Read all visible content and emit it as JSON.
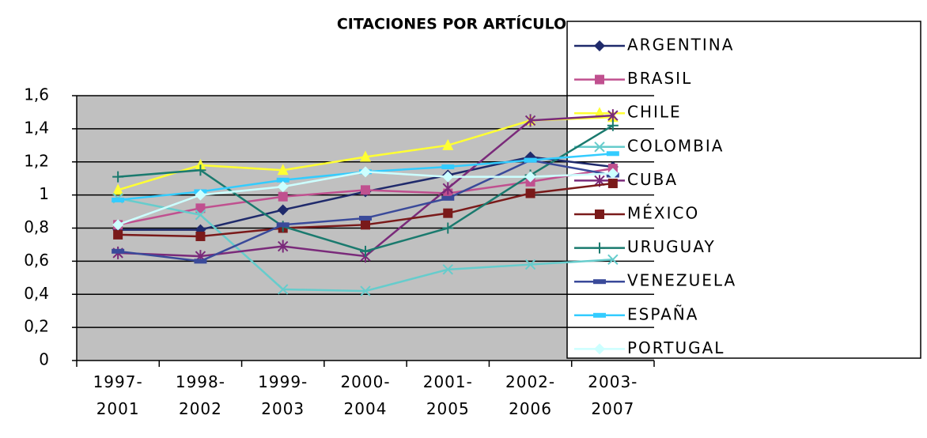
{
  "chart_data": {
    "type": "line",
    "title": "CITACIONES POR ARTÍCULO",
    "categories": [
      "1997- 2001",
      "1998- 2002",
      "1999- 2003",
      "2000- 2004",
      "2001- 2005",
      "2002- 2006",
      "2003- 2007"
    ],
    "ylim": [
      0,
      1.6
    ],
    "yticks": [
      0,
      {
        "value": 0.2,
        "label": "0,2"
      },
      {
        "value": 0.4,
        "label": "0,4"
      },
      {
        "value": 0.6,
        "label": "0,6"
      },
      {
        "value": 0.8,
        "label": "0,8"
      },
      1,
      {
        "value": 1.2,
        "label": "1,2"
      },
      {
        "value": 1.4,
        "label": "1,4"
      },
      {
        "value": 1.6,
        "label": "1,6"
      }
    ],
    "grid": true,
    "legend": "right",
    "series": [
      {
        "name": "ARGENTINA",
        "color": "#1f2a6b",
        "marker": "diamond",
        "values": [
          0.79,
          0.79,
          0.91,
          1.02,
          1.12,
          1.23,
          1.17
        ]
      },
      {
        "name": "BRASIL",
        "color": "#c0508f",
        "marker": "square",
        "values": [
          0.82,
          0.92,
          0.99,
          1.03,
          1.01,
          1.08,
          1.16
        ]
      },
      {
        "name": "CHILE",
        "color": "#ffff33",
        "marker": "triangle",
        "values": [
          1.03,
          1.18,
          1.15,
          1.23,
          1.3,
          1.45,
          1.47
        ]
      },
      {
        "name": "COLOMBIA",
        "color": "#66cccc",
        "marker": "x",
        "values": [
          0.98,
          0.88,
          0.43,
          0.42,
          0.55,
          0.58,
          0.61
        ]
      },
      {
        "name": "CUBA",
        "color": "#7a2a7a",
        "marker": "star",
        "values": [
          0.65,
          0.63,
          0.69,
          0.63,
          1.04,
          1.45,
          1.48
        ]
      },
      {
        "name": "MÉXICO",
        "color": "#7a1a1a",
        "marker": "square",
        "values": [
          0.76,
          0.75,
          0.8,
          0.82,
          0.89,
          1.01,
          1.07
        ]
      },
      {
        "name": "URUGUAY",
        "color": "#1a7a6e",
        "marker": "plus",
        "values": [
          1.11,
          1.15,
          0.81,
          0.66,
          0.8,
          1.12,
          1.42
        ]
      },
      {
        "name": "VENEZUELA",
        "color": "#3a4a9a",
        "marker": "dash",
        "values": [
          0.66,
          0.6,
          0.82,
          0.86,
          0.98,
          1.21,
          1.12
        ]
      },
      {
        "name": "ESPAÑA",
        "color": "#33ccff",
        "marker": "dash",
        "values": [
          0.97,
          1.02,
          1.09,
          1.14,
          1.17,
          1.21,
          1.25
        ]
      },
      {
        "name": "PORTUGAL",
        "color": "#ccffff",
        "marker": "diamond",
        "values": [
          0.82,
          1.0,
          1.05,
          1.14,
          1.11,
          1.11,
          1.13
        ]
      }
    ]
  }
}
